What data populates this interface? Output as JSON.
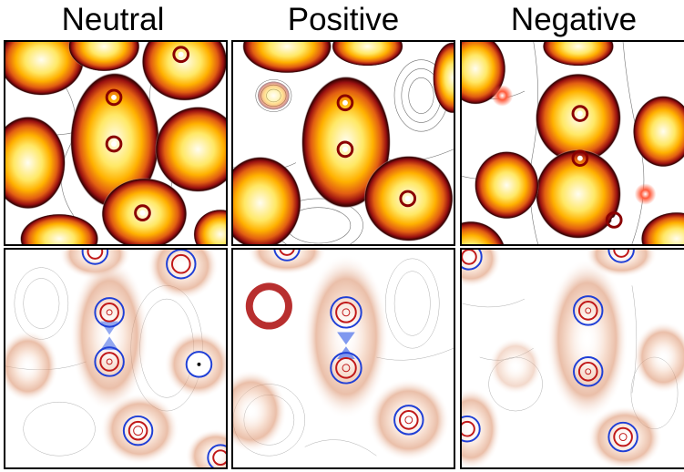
{
  "columns": [
    {
      "title": "Neutral"
    },
    {
      "title": "Positive"
    },
    {
      "title": "Negative"
    }
  ],
  "rows": [
    "density-map",
    "difference-map"
  ],
  "colors": {
    "density_gradient": [
      "#fffbe6",
      "#ffe55c",
      "#ffb000",
      "#e06010",
      "#a01010",
      "#2a0000"
    ],
    "difference_positive": "#1f3fd6",
    "difference_negative": "#c01818",
    "contour_line": "#555555"
  }
}
